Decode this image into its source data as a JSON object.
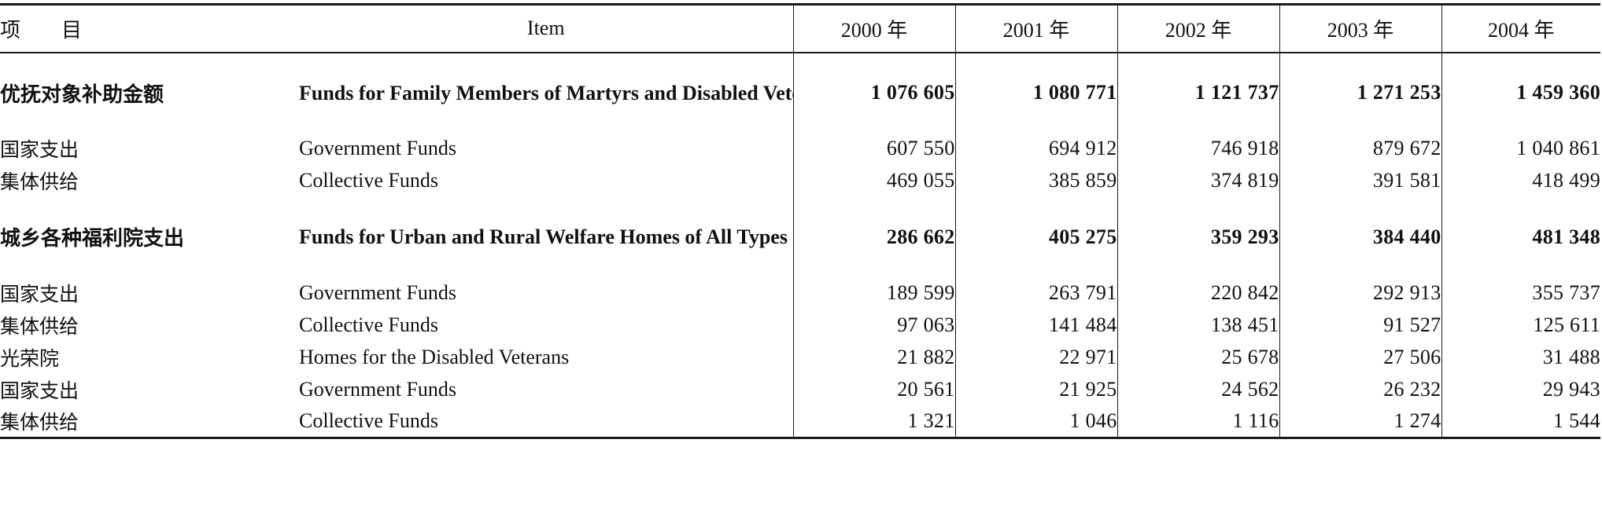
{
  "header": {
    "item_zh": "项目",
    "item_en": "Item",
    "years": [
      "2000 年",
      "2001 年",
      "2002 年",
      "2003 年",
      "2004 年"
    ]
  },
  "rows": [
    {
      "zh": "优抚对象补助金额",
      "en": "Funds for Family Members of Martyrs and Disabled Veterans",
      "values": [
        "1 076 605",
        "1 080 771",
        "1 121 737",
        "1 271 253",
        "1 459 360"
      ]
    },
    {
      "zh": "国家支出",
      "en": "Government Funds",
      "values": [
        "607 550",
        "694 912",
        "746 918",
        "879 672",
        "1 040 861"
      ]
    },
    {
      "zh": "集体供给",
      "en": "Collective Funds",
      "values": [
        "469 055",
        "385 859",
        "374 819",
        "391 581",
        "418 499"
      ]
    },
    {
      "zh": "城乡各种福利院支出",
      "en": "Funds for Urban and Rural Welfare Homes of All Types",
      "values": [
        "286 662",
        "405 275",
        "359 293",
        "384 440",
        "481 348"
      ]
    },
    {
      "zh": "国家支出",
      "en": "Government Funds",
      "values": [
        "189 599",
        "263 791",
        "220 842",
        "292 913",
        "355 737"
      ]
    },
    {
      "zh": "集体供给",
      "en": "Collective Funds",
      "values": [
        "97 063",
        "141 484",
        "138 451",
        "91 527",
        "125 611"
      ]
    },
    {
      "zh": "光荣院",
      "en": "Homes for the Disabled Veterans",
      "values": [
        "21 882",
        "22 971",
        "25 678",
        "27 506",
        "31 488"
      ]
    },
    {
      "zh": "国家支出",
      "en": "Government Funds",
      "values": [
        "20 561",
        "21 925",
        "24 562",
        "26 232",
        "29 943"
      ]
    },
    {
      "zh": "集体供给",
      "en": "Collective Funds",
      "values": [
        "1 321",
        "1 046",
        "1 116",
        "1 274",
        "1 544"
      ]
    }
  ]
}
